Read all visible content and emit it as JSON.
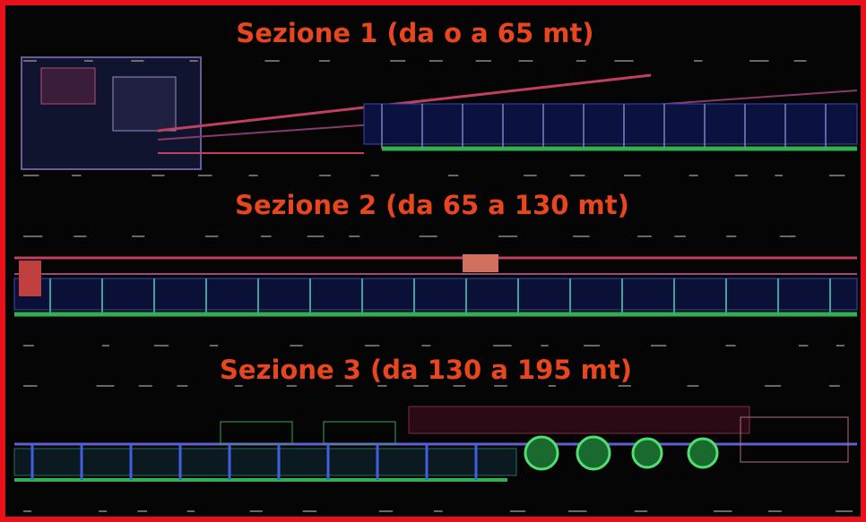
{
  "sections": [
    {
      "label": "Sezione 1 (da o a 65 mt)"
    },
    {
      "label": "Sezione 2 (da 65 a 130 mt)"
    },
    {
      "label": "Sezione 3 (da 130 a 195 mt)"
    }
  ]
}
